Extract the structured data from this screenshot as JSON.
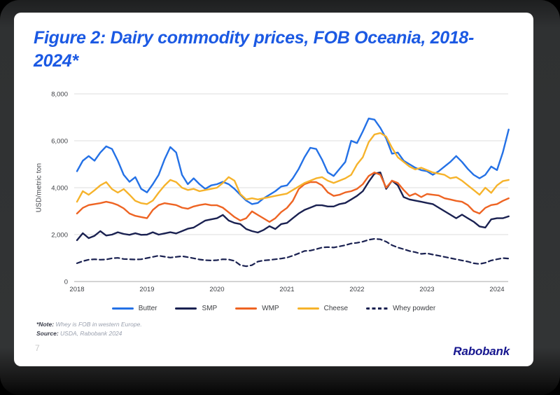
{
  "header": {
    "title": "Figure 2: Dairy commodity prices, FOB Oceania, 2018-2024*"
  },
  "chart_data": {
    "type": "line",
    "title": "Figure 2: Dairy commodity prices, FOB Oceania, 2018-2024*",
    "xlabel": "",
    "ylabel": "USD/metric ton",
    "ylim": [
      0,
      8000
    ],
    "yticks": [
      0,
      2000,
      4000,
      6000,
      8000
    ],
    "ytick_labels": [
      "0",
      "2,000",
      "4,000",
      "6,000",
      "8,000"
    ],
    "xtick_labels": [
      "2018",
      "2019",
      "2020",
      "2021",
      "2022",
      "2023",
      "2024"
    ],
    "x_unit": "month",
    "x_start": "2018-01",
    "x_end": "2024-03",
    "grid": "horizontal",
    "legend_position": "bottom-center",
    "axis_color": "#a8a8a8",
    "grid_color": "#dedede",
    "series": [
      {
        "name": "Butter",
        "color": "#2471e6",
        "line_style": "solid",
        "values": [
          4700,
          5150,
          5350,
          5150,
          5500,
          5760,
          5650,
          5150,
          4550,
          4250,
          4450,
          3950,
          3800,
          4150,
          4550,
          5200,
          5730,
          5500,
          4550,
          4150,
          4400,
          4150,
          3950,
          4100,
          4150,
          4250,
          4150,
          3950,
          3700,
          3450,
          3300,
          3350,
          3550,
          3700,
          3850,
          4050,
          4100,
          4400,
          4800,
          5300,
          5700,
          5650,
          5200,
          4650,
          4500,
          4800,
          5100,
          6000,
          5900,
          6400,
          6950,
          6900,
          6550,
          6100,
          5450,
          5500,
          5150,
          5000,
          4850,
          4750,
          4700,
          4550,
          4700,
          4900,
          5100,
          5350,
          5100,
          4800,
          4550,
          4400,
          4550,
          4900,
          4750,
          5500,
          6480
        ]
      },
      {
        "name": "SMP",
        "color": "#1a2151",
        "line_style": "solid",
        "values": [
          1760,
          2060,
          1850,
          1950,
          2150,
          1960,
          2000,
          2100,
          2030,
          1990,
          2060,
          1990,
          2000,
          2100,
          2000,
          2050,
          2100,
          2050,
          2150,
          2250,
          2300,
          2450,
          2600,
          2650,
          2700,
          2840,
          2600,
          2500,
          2450,
          2240,
          2150,
          2090,
          2200,
          2360,
          2240,
          2450,
          2500,
          2700,
          2900,
          3050,
          3150,
          3250,
          3250,
          3200,
          3200,
          3300,
          3350,
          3500,
          3650,
          3850,
          4250,
          4600,
          4650,
          3950,
          4300,
          4100,
          3600,
          3500,
          3450,
          3400,
          3350,
          3300,
          3150,
          3000,
          2850,
          2700,
          2850,
          2700,
          2550,
          2350,
          2300,
          2650,
          2700,
          2700,
          2780
        ]
      },
      {
        "name": "WMP",
        "color": "#ee6423",
        "line_style": "solid",
        "values": [
          2900,
          3140,
          3260,
          3300,
          3340,
          3400,
          3350,
          3260,
          3120,
          2900,
          2800,
          2750,
          2700,
          3050,
          3260,
          3340,
          3300,
          3260,
          3150,
          3100,
          3200,
          3260,
          3300,
          3250,
          3250,
          3150,
          2950,
          2750,
          2600,
          2700,
          2990,
          2840,
          2690,
          2540,
          2700,
          2960,
          3140,
          3440,
          3940,
          4150,
          4240,
          4240,
          4100,
          3800,
          3650,
          3700,
          3800,
          3850,
          3950,
          4150,
          4500,
          4650,
          4550,
          4000,
          4300,
          4200,
          3900,
          3650,
          3750,
          3600,
          3730,
          3700,
          3670,
          3550,
          3500,
          3440,
          3400,
          3260,
          3000,
          2900,
          3140,
          3260,
          3300,
          3440,
          3550
        ]
      },
      {
        "name": "Cheese",
        "color": "#f6b32b",
        "line_style": "solid",
        "values": [
          3400,
          3850,
          3700,
          3890,
          4100,
          4240,
          3940,
          3790,
          3940,
          3700,
          3440,
          3340,
          3300,
          3450,
          3790,
          4090,
          4330,
          4240,
          4000,
          3900,
          3950,
          3850,
          3900,
          3950,
          4000,
          4200,
          4450,
          4300,
          3730,
          3500,
          3550,
          3500,
          3550,
          3600,
          3650,
          3700,
          3750,
          3900,
          4050,
          4200,
          4300,
          4400,
          4450,
          4300,
          4200,
          4300,
          4400,
          4550,
          4990,
          5300,
          5940,
          6270,
          6330,
          6180,
          5700,
          5300,
          5100,
          4900,
          4780,
          4850,
          4750,
          4650,
          4600,
          4550,
          4400,
          4450,
          4300,
          4100,
          3900,
          3700,
          4000,
          3780,
          4100,
          4280,
          4330
        ]
      },
      {
        "name": "Whey powder",
        "color": "#1a2151",
        "line_style": "dashed",
        "values": [
          780,
          870,
          930,
          950,
          930,
          940,
          990,
          1010,
          960,
          950,
          940,
          950,
          1000,
          1050,
          1100,
          1060,
          1020,
          1050,
          1080,
          1040,
          990,
          940,
          910,
          900,
          910,
          950,
          940,
          880,
          700,
          650,
          700,
          850,
          900,
          920,
          950,
          980,
          1020,
          1100,
          1200,
          1300,
          1320,
          1380,
          1450,
          1470,
          1450,
          1500,
          1550,
          1620,
          1650,
          1700,
          1780,
          1820,
          1800,
          1700,
          1550,
          1450,
          1380,
          1300,
          1250,
          1180,
          1200,
          1150,
          1100,
          1050,
          1000,
          950,
          900,
          850,
          780,
          750,
          800,
          900,
          950,
          1000,
          980
        ]
      }
    ]
  },
  "footnote": {
    "note_label": "*Note:",
    "note_text": "Whey is FOB in western Europe.",
    "source_label": "Source:",
    "source_text": "USDA, Rabobank 2024"
  },
  "footer": {
    "page_number": "7",
    "brand": "Rabobank"
  }
}
